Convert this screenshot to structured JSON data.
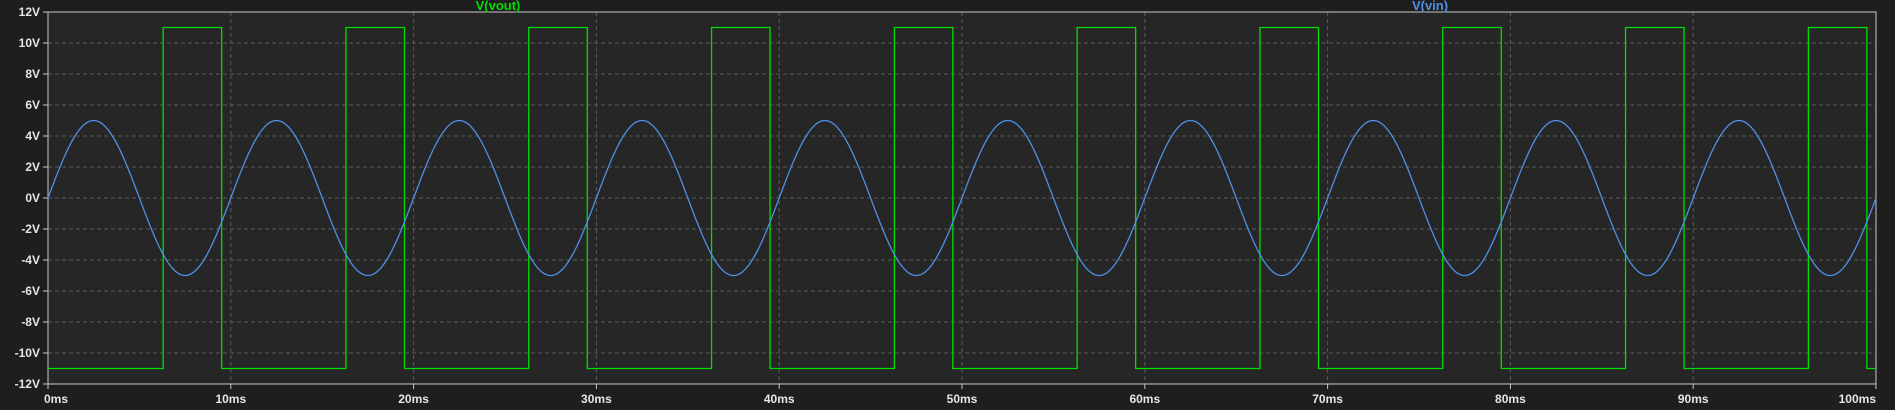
{
  "chart_data": {
    "type": "line",
    "title": "",
    "xlabel": "",
    "ylabel": "",
    "xlim": [
      0,
      100
    ],
    "ylim": [
      -12,
      12
    ],
    "x_unit": "ms",
    "y_unit": "V",
    "grid": true,
    "x_ticks": [
      0,
      10,
      20,
      30,
      40,
      50,
      60,
      70,
      80,
      90,
      100
    ],
    "x_tick_labels": [
      "0ms",
      "10ms",
      "20ms",
      "30ms",
      "40ms",
      "50ms",
      "60ms",
      "70ms",
      "80ms",
      "90ms",
      "100ms"
    ],
    "y_ticks": [
      12,
      10,
      8,
      6,
      4,
      2,
      0,
      -2,
      -4,
      -6,
      -8,
      -10,
      -12
    ],
    "y_tick_labels": [
      "12V",
      "10V",
      "8V",
      "6V",
      "4V",
      "2V",
      "0V",
      "-2V",
      "-4V",
      "-6V",
      "-8V",
      "-10V",
      "-12V"
    ],
    "series": [
      {
        "name": "V(vout)",
        "color": "#00dd00",
        "shape": "square",
        "x": [
          0,
          6.3,
          6.3,
          9.5,
          9.5,
          16.3,
          16.3,
          19.5,
          19.5,
          26.3,
          26.3,
          29.5,
          29.5,
          36.3,
          36.3,
          39.5,
          39.5,
          46.3,
          46.3,
          49.5,
          49.5,
          56.3,
          56.3,
          59.5,
          59.5,
          66.3,
          66.3,
          69.5,
          69.5,
          76.3,
          76.3,
          79.5,
          79.5,
          86.3,
          86.3,
          89.5,
          89.5,
          96.3,
          96.3,
          99.5,
          99.5,
          100
        ],
        "y": [
          -11,
          -11,
          11,
          11,
          -11,
          -11,
          11,
          11,
          -11,
          -11,
          11,
          11,
          -11,
          -11,
          11,
          11,
          -11,
          -11,
          11,
          11,
          -11,
          -11,
          11,
          11,
          -11,
          -11,
          11,
          11,
          -11,
          -11,
          11,
          11,
          -11,
          -11,
          11,
          11,
          -11,
          -11,
          11,
          11,
          -11,
          -11
        ]
      },
      {
        "name": "V(vin)",
        "color": "#4f8fe6",
        "shape": "sine",
        "amplitude": 5,
        "period_ms": 10,
        "offset": 0,
        "phase_deg": 0
      }
    ],
    "colors": {
      "background": "#1e1e1e",
      "plot_background": "#262626",
      "grid": "#5a5a5a",
      "axis": "#c8c8c8",
      "text": "#e6e6e6"
    }
  }
}
